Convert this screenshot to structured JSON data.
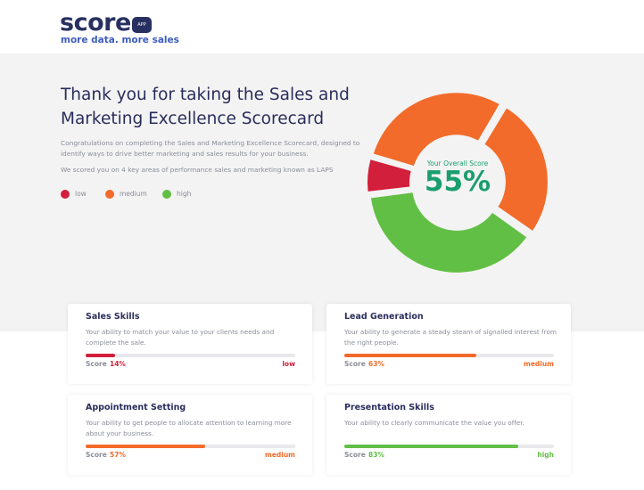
{
  "header": {
    "logo": "score",
    "badge": "APP",
    "tagline": "more data. more sales"
  },
  "intro": {
    "title": [
      "Thank you for taking the Sales and",
      "Marketing Excellence Scorecard"
    ],
    "paragraphs": [
      "Congratulations on completing the Sales and Marketing Excellence Scorecard, designed to identify ways to drive better marketing and sales results for your business.",
      "We scored you on 4 key areas of performance sales and marketing known as LAPS"
    ],
    "legend": [
      {
        "label": "low",
        "color": "#d21f3c"
      },
      {
        "label": "medium",
        "color": "#f26b2a"
      },
      {
        "label": "high",
        "color": "#62bf45"
      }
    ]
  },
  "overall": {
    "label": "Your Overall Score",
    "score": "55%"
  },
  "cards": [
    {
      "title": "Sales Skills",
      "description": "Your ability to match your value to your clients needs and complete the sale.",
      "score_caption": "Score",
      "score": 14,
      "score_label": "14%",
      "level": "low",
      "color": "#d21f3c"
    },
    {
      "title": "Lead Generation",
      "description": "Your ability to generate a steady steam of signalled interest from the right people.",
      "score_caption": "Score",
      "score": 63,
      "score_label": "63%",
      "level": "medium",
      "color": "#f26b2a"
    },
    {
      "title": "Appointment Setting",
      "description": "Your ability to get people to allocate attention to learning more about your business.",
      "score_caption": "Score",
      "score": 57,
      "score_label": "57%",
      "level": "medium",
      "color": "#f26b2a"
    },
    {
      "title": "Presentation Skills",
      "description": "Your ability to clearly communicate the value you offer.",
      "score_caption": "Score",
      "score": 83,
      "score_label": "83%",
      "level": "high",
      "color": "#62bf45"
    }
  ]
}
